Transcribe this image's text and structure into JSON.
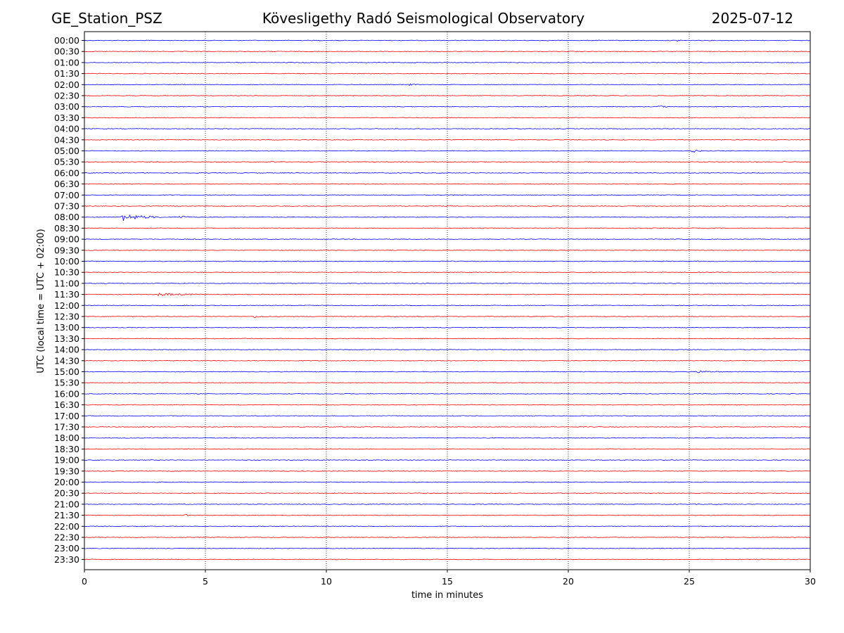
{
  "header": {
    "station": "GE_Station_PSZ",
    "observatory": "Kövesligethy Radó Seismological Observatory",
    "date": "2025-07-12"
  },
  "chart_data": {
    "type": "line",
    "title": "Kövesligethy Radó Seismological Observatory",
    "xlabel": "time in minutes",
    "ylabel": "UTC (local time = UTC + 02:00)",
    "xlim": [
      0,
      30
    ],
    "xticks": [
      0,
      5,
      10,
      15,
      20,
      25,
      30
    ],
    "grid": "vertical dotted lines at 5-minute ticks",
    "row_labels": [
      "00:00",
      "00:30",
      "01:00",
      "01:30",
      "02:00",
      "02:30",
      "03:00",
      "03:30",
      "04:00",
      "04:30",
      "05:00",
      "05:30",
      "06:00",
      "06:30",
      "07:00",
      "07:30",
      "08:00",
      "08:30",
      "09:00",
      "09:30",
      "10:00",
      "10:30",
      "11:00",
      "11:30",
      "12:00",
      "12:30",
      "13:00",
      "13:30",
      "14:00",
      "14:30",
      "15:00",
      "15:30",
      "16:00",
      "16:30",
      "17:00",
      "17:30",
      "18:00",
      "18:30",
      "19:00",
      "19:30",
      "20:00",
      "20:30",
      "21:00",
      "21:30",
      "22:00",
      "22:30",
      "23:00",
      "23:30"
    ],
    "row_colors": [
      "#0000ff",
      "#ff0000"
    ],
    "events": [
      {
        "row": "00:00",
        "start": 24.5,
        "end": 25.0,
        "amp": 1.2
      },
      {
        "row": "02:00",
        "start": 13.4,
        "end": 13.9,
        "amp": 1.3
      },
      {
        "row": "03:00",
        "start": 23.7,
        "end": 24.3,
        "amp": 1.5
      },
      {
        "row": "05:00",
        "start": 25.1,
        "end": 25.6,
        "amp": 2.5
      },
      {
        "row": "05:30",
        "start": 7.7,
        "end": 8.0,
        "amp": 2.0
      },
      {
        "row": "05:30",
        "start": 28.9,
        "end": 29.1,
        "amp": 1.8
      },
      {
        "row": "08:00",
        "start": 1.5,
        "end": 3.2,
        "amp": 5.5
      },
      {
        "row": "08:00",
        "start": 3.9,
        "end": 4.6,
        "amp": 1.8
      },
      {
        "row": "11:30",
        "start": 3.0,
        "end": 5.2,
        "amp": 2.0
      },
      {
        "row": "12:30",
        "start": 7.0,
        "end": 7.6,
        "amp": 1.8
      },
      {
        "row": "15:00",
        "start": 25.3,
        "end": 26.4,
        "amp": 1.8
      },
      {
        "row": "21:30",
        "start": 4.1,
        "end": 4.4,
        "amp": 1.6
      }
    ]
  }
}
